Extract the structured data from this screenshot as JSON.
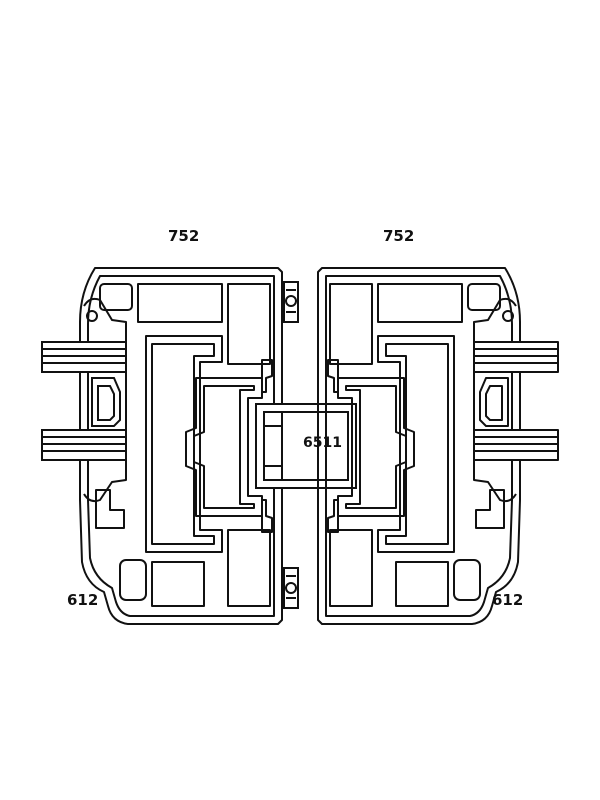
{
  "labels": {
    "top_left": "752",
    "top_right": "752",
    "bottom_left": "612",
    "bottom_right": "612",
    "center": "6511"
  },
  "colors": {
    "line": "#111111",
    "background": "#ffffff"
  }
}
